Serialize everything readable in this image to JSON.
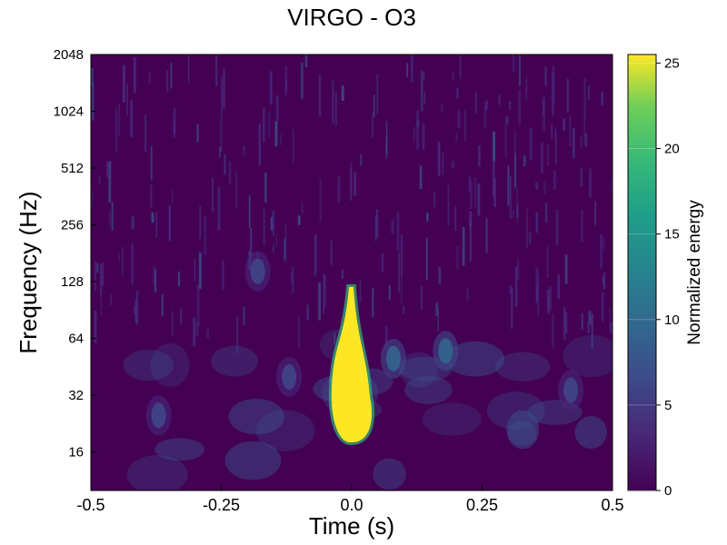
{
  "chart_data": {
    "type": "heatmap",
    "title": "VIRGO - O3",
    "xlabel": "Time (s)",
    "ylabel": "Frequency (Hz)",
    "xlim": [
      -0.5,
      0.5
    ],
    "ylim": [
      10,
      2048
    ],
    "y_scale": "log2",
    "x_ticks": [
      "-0.5",
      "-0.25",
      "0.0",
      "0.25",
      "0.5"
    ],
    "y_ticks": [
      "16",
      "32",
      "64",
      "128",
      "256",
      "512",
      "1024",
      "2048"
    ],
    "colorbar": {
      "label": "Normalized energy",
      "range": [
        0,
        25.5
      ],
      "ticks": [
        "0",
        "5",
        "10",
        "15",
        "20",
        "25"
      ],
      "colormap": "viridis"
    },
    "features": [
      {
        "name": "chirp",
        "t": 0.0,
        "f_low": 18,
        "f_high": 120,
        "peak_energy": 25.5
      },
      {
        "name": "blob",
        "t": 0.08,
        "f": 50,
        "energy": 8
      },
      {
        "name": "blob",
        "t": 0.18,
        "f": 55,
        "energy": 9
      },
      {
        "name": "blob",
        "t": 0.42,
        "f": 34,
        "energy": 7
      },
      {
        "name": "blob",
        "t": -0.18,
        "f": 145,
        "energy": 7
      },
      {
        "name": "blob",
        "t": -0.37,
        "f": 25,
        "energy": 5
      },
      {
        "name": "blob",
        "t": -0.12,
        "f": 40,
        "energy": 5
      }
    ]
  }
}
